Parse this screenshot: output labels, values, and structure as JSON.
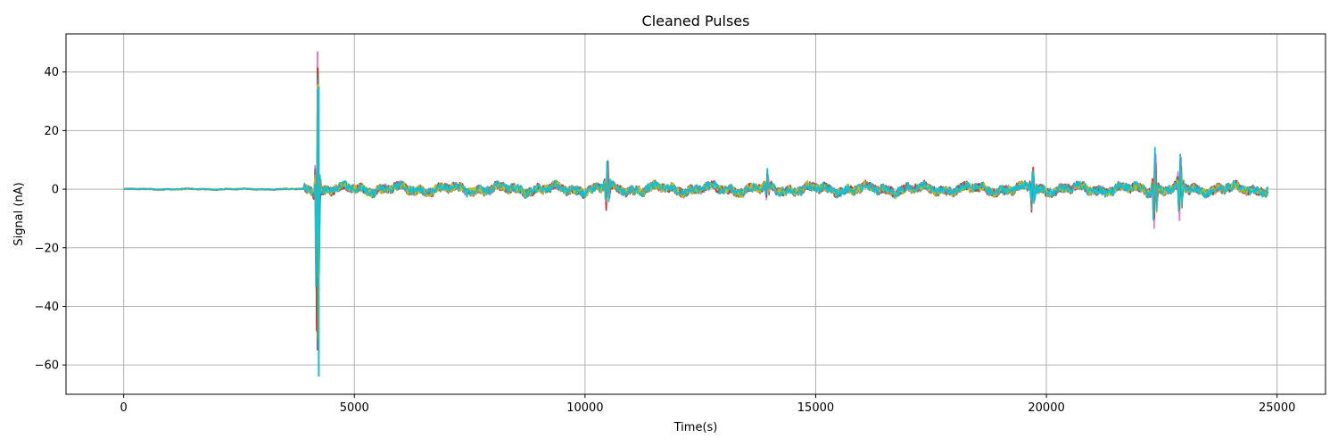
{
  "chart_data": {
    "type": "line",
    "title": "Cleaned Pulses",
    "xlabel": "Time(s)",
    "ylabel": "Signal (nA)",
    "xlim": [
      -1250,
      26050
    ],
    "ylim": [
      -70,
      53
    ],
    "grid": true,
    "x_ticks": [
      0,
      5000,
      10000,
      15000,
      20000,
      25000
    ],
    "x_tick_labels": [
      "0",
      "5000",
      "10000",
      "15000",
      "20000",
      "25000"
    ],
    "y_ticks": [
      -60,
      -40,
      -20,
      0,
      20,
      40
    ],
    "y_tick_labels": [
      "−60",
      "−40",
      "−20",
      "0",
      "20",
      "40"
    ],
    "x_range": [
      0,
      24800
    ],
    "num_samples": 24800,
    "series_colors": [
      "#1f77b4",
      "#ff7f0e",
      "#2ca02c",
      "#d62728",
      "#9467bd",
      "#8c564b",
      "#e377c2",
      "#7f7f7f",
      "#bcbd22",
      "#17becf"
    ],
    "series": [
      {
        "color": "#e377c2",
        "peak_max": 47,
        "peak_min": -55
      },
      {
        "color": "#d62728",
        "peak_max": 41.5,
        "peak_min": -55
      },
      {
        "color": "#8c564b",
        "peak_max": 40,
        "peak_min": -54
      },
      {
        "color": "#7f7f7f",
        "peak_max": 38,
        "peak_min": -52
      },
      {
        "color": "#bcbd22",
        "peak_max": 36,
        "peak_min": -51
      },
      {
        "color": "#17becf",
        "peak_max": 35,
        "peak_min": -64
      }
    ],
    "events": [
      {
        "x": 4200,
        "max": 47,
        "min": -64,
        "note": "large pulse"
      },
      {
        "x": 10480,
        "max": 9,
        "min": -7.5
      },
      {
        "x": 13950,
        "max": 4.5,
        "min": -4
      },
      {
        "x": 19700,
        "max": 7,
        "min": -8
      },
      {
        "x": 22350,
        "max": 14,
        "min": -13.5
      },
      {
        "x": 22900,
        "max": 10.5,
        "min": -12
      }
    ],
    "baseline_noise": [
      {
        "x_start": 0,
        "x_end": 3900,
        "amplitude": 0.3
      },
      {
        "x_start": 3900,
        "x_end": 24800,
        "amplitude": 2.5
      }
    ]
  }
}
